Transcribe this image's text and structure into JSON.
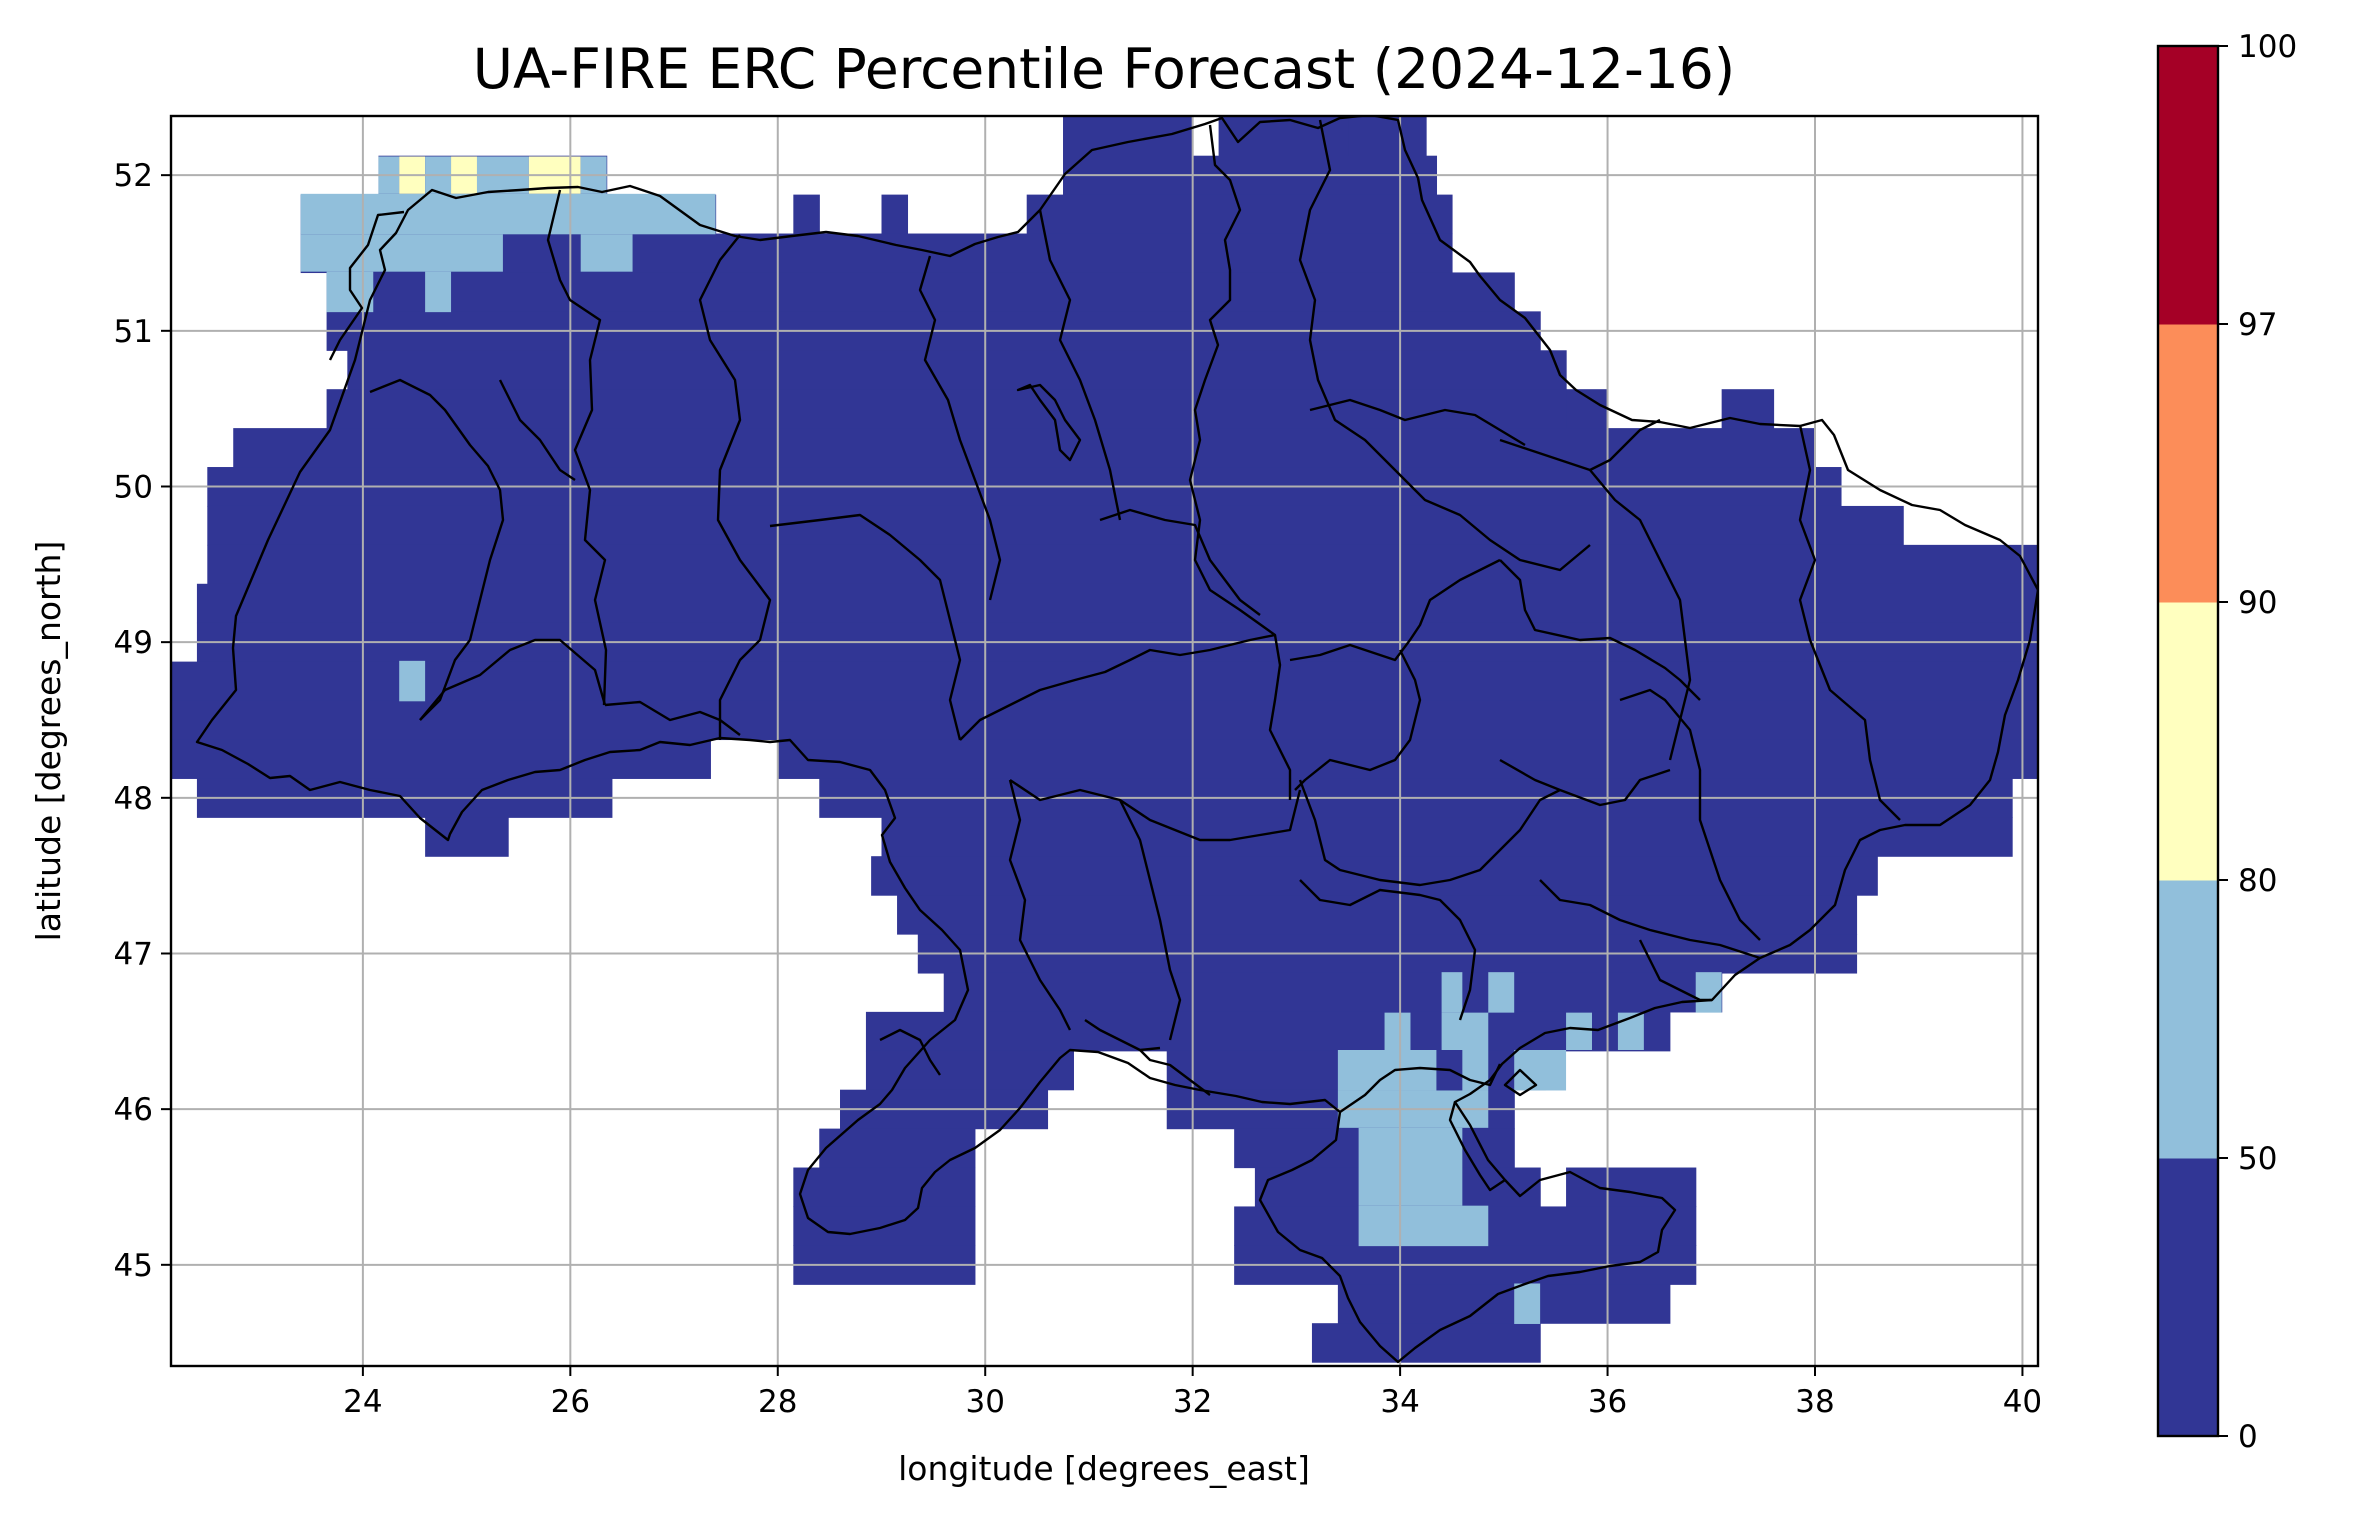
{
  "title": "UA-FIRE ERC Percentile Forecast (2024-12-16)",
  "x_axis": {
    "label": "longitude [degrees_east]",
    "range": [
      22.15,
      40.15
    ],
    "ticks": [
      24,
      26,
      28,
      30,
      32,
      34,
      36,
      38,
      40
    ]
  },
  "y_axis": {
    "label": "latitude [degrees_north]",
    "range": [
      44.35,
      52.38
    ],
    "ticks": [
      45,
      46,
      47,
      48,
      49,
      50,
      51,
      52
    ]
  },
  "grid": true,
  "colorbar": {
    "placement": "right",
    "bins": [
      {
        "from": 0,
        "to": 50,
        "color": "#313695"
      },
      {
        "from": 50,
        "to": 80,
        "color": "#91bfdb"
      },
      {
        "from": 80,
        "to": 90,
        "color": "#ffffbf"
      },
      {
        "from": 90,
        "to": 97,
        "color": "#fc8d59"
      },
      {
        "from": 97,
        "to": 100,
        "color": "#a50026"
      }
    ],
    "ticks": [
      0,
      50,
      80,
      90,
      97,
      100
    ]
  },
  "chart_data": {
    "type": "heatmap",
    "cell_size_deg": 0.25,
    "default_class": "0-50",
    "coverage_rows": [
      {
        "lat": 52.25,
        "spans": [
          [
            30.75,
            32.0
          ],
          [
            32.25,
            33.5
          ],
          [
            33.5,
            34.25
          ]
        ]
      },
      {
        "lat": 52.0,
        "spans": [
          [
            24.15,
            26.35
          ],
          [
            30.75,
            34.35
          ]
        ]
      },
      {
        "lat": 51.75,
        "spans": [
          [
            23.4,
            27.4
          ],
          [
            28.15,
            28.4
          ],
          [
            29.0,
            29.25
          ],
          [
            30.4,
            34.5
          ]
        ]
      },
      {
        "lat": 51.5,
        "spans": [
          [
            23.4,
            34.5
          ]
        ]
      },
      {
        "lat": 51.25,
        "spans": [
          [
            23.65,
            35.1
          ]
        ]
      },
      {
        "lat": 51.0,
        "spans": [
          [
            23.65,
            35.35
          ]
        ]
      },
      {
        "lat": 50.75,
        "spans": [
          [
            23.85,
            35.6
          ]
        ]
      },
      {
        "lat": 50.5,
        "spans": [
          [
            23.65,
            35.6
          ],
          [
            35.6,
            36.0
          ],
          [
            37.1,
            37.6
          ]
        ]
      },
      {
        "lat": 50.25,
        "spans": [
          [
            22.75,
            38.0
          ]
        ]
      },
      {
        "lat": 50.0,
        "spans": [
          [
            22.5,
            38.25
          ]
        ]
      },
      {
        "lat": 49.75,
        "spans": [
          [
            22.5,
            38.85
          ]
        ]
      },
      {
        "lat": 49.5,
        "spans": [
          [
            22.5,
            40.15
          ]
        ]
      },
      {
        "lat": 49.25,
        "spans": [
          [
            22.4,
            40.15
          ]
        ]
      },
      {
        "lat": 49.0,
        "spans": [
          [
            22.4,
            40.15
          ]
        ]
      },
      {
        "lat": 48.75,
        "spans": [
          [
            22.15,
            40.15
          ]
        ]
      },
      {
        "lat": 48.5,
        "spans": [
          [
            22.15,
            40.15
          ]
        ]
      },
      {
        "lat": 48.25,
        "spans": [
          [
            22.15,
            27.35
          ],
          [
            28.0,
            40.15
          ]
        ]
      },
      {
        "lat": 48.0,
        "spans": [
          [
            22.4,
            26.4
          ],
          [
            28.4,
            39.9
          ]
        ]
      },
      {
        "lat": 47.75,
        "spans": [
          [
            24.6,
            25.4
          ],
          [
            29.0,
            39.9
          ]
        ]
      },
      {
        "lat": 47.5,
        "spans": [
          [
            28.9,
            38.6
          ]
        ]
      },
      {
        "lat": 47.25,
        "spans": [
          [
            29.15,
            38.4
          ]
        ]
      },
      {
        "lat": 47.0,
        "spans": [
          [
            29.35,
            38.4
          ]
        ]
      },
      {
        "lat": 46.75,
        "spans": [
          [
            29.6,
            37.1
          ]
        ]
      },
      {
        "lat": 46.5,
        "spans": [
          [
            28.85,
            36.6
          ]
        ]
      },
      {
        "lat": 46.25,
        "spans": [
          [
            28.85,
            30.85
          ],
          [
            31.75,
            35.4
          ]
        ]
      },
      {
        "lat": 46.0,
        "spans": [
          [
            28.6,
            30.6
          ],
          [
            31.75,
            35.1
          ]
        ]
      },
      {
        "lat": 45.75,
        "spans": [
          [
            28.4,
            29.9
          ],
          [
            32.4,
            35.1
          ]
        ]
      },
      {
        "lat": 45.5,
        "spans": [
          [
            28.15,
            29.9
          ],
          [
            32.6,
            35.35
          ],
          [
            35.6,
            36.85
          ]
        ]
      },
      {
        "lat": 45.25,
        "spans": [
          [
            28.15,
            29.9
          ],
          [
            32.4,
            36.85
          ]
        ]
      },
      {
        "lat": 45.0,
        "spans": [
          [
            28.15,
            29.9
          ],
          [
            32.4,
            36.85
          ]
        ]
      },
      {
        "lat": 44.75,
        "spans": [
          [
            33.4,
            36.6
          ]
        ]
      },
      {
        "lat": 44.5,
        "spans": [
          [
            33.15,
            35.35
          ]
        ]
      }
    ],
    "class_patches": [
      {
        "class": "50-80",
        "lon": [
          24.15,
          24.35
        ],
        "lat": [
          51.88,
          52.12
        ]
      },
      {
        "class": "80-90",
        "lon": [
          24.35,
          24.6
        ],
        "lat": [
          51.88,
          52.12
        ]
      },
      {
        "class": "50-80",
        "lon": [
          24.6,
          24.85
        ],
        "lat": [
          51.88,
          52.12
        ]
      },
      {
        "class": "80-90",
        "lon": [
          24.85,
          25.1
        ],
        "lat": [
          51.88,
          52.12
        ]
      },
      {
        "class": "50-80",
        "lon": [
          25.1,
          25.6
        ],
        "lat": [
          51.88,
          52.12
        ]
      },
      {
        "class": "80-90",
        "lon": [
          25.6,
          26.1
        ],
        "lat": [
          51.88,
          52.12
        ]
      },
      {
        "class": "50-80",
        "lon": [
          26.1,
          26.35
        ],
        "lat": [
          51.88,
          52.12
        ]
      },
      {
        "class": "50-80",
        "lon": [
          23.4,
          27.4
        ],
        "lat": [
          51.62,
          51.88
        ]
      },
      {
        "class": "50-80",
        "lon": [
          23.4,
          25.35
        ],
        "lat": [
          51.38,
          51.62
        ]
      },
      {
        "class": "50-80",
        "lon": [
          26.1,
          26.6
        ],
        "lat": [
          51.38,
          51.62
        ]
      },
      {
        "class": "50-80",
        "lon": [
          23.65,
          24.1
        ],
        "lat": [
          51.12,
          51.38
        ]
      },
      {
        "class": "50-80",
        "lon": [
          24.6,
          24.85
        ],
        "lat": [
          51.12,
          51.38
        ]
      },
      {
        "class": "50-80",
        "lon": [
          24.35,
          24.6
        ],
        "lat": [
          48.62,
          48.88
        ]
      },
      {
        "class": "50-80",
        "lon": [
          34.4,
          34.6
        ],
        "lat": [
          46.62,
          46.88
        ]
      },
      {
        "class": "50-80",
        "lon": [
          34.85,
          35.1
        ],
        "lat": [
          46.62,
          46.88
        ]
      },
      {
        "class": "50-80",
        "lon": [
          33.85,
          34.1
        ],
        "lat": [
          46.38,
          46.62
        ]
      },
      {
        "class": "50-80",
        "lon": [
          34.4,
          34.85
        ],
        "lat": [
          46.38,
          46.62
        ]
      },
      {
        "class": "50-80",
        "lon": [
          35.6,
          35.85
        ],
        "lat": [
          46.38,
          46.62
        ]
      },
      {
        "class": "50-80",
        "lon": [
          36.1,
          36.35
        ],
        "lat": [
          46.38,
          46.62
        ]
      },
      {
        "class": "50-80",
        "lon": [
          36.85,
          37.1
        ],
        "lat": [
          46.62,
          46.88
        ]
      },
      {
        "class": "50-80",
        "lon": [
          33.4,
          34.35
        ],
        "lat": [
          46.12,
          46.38
        ]
      },
      {
        "class": "50-80",
        "lon": [
          34.6,
          34.85
        ],
        "lat": [
          46.12,
          46.38
        ]
      },
      {
        "class": "50-80",
        "lon": [
          35.1,
          35.6
        ],
        "lat": [
          46.12,
          46.38
        ]
      },
      {
        "class": "50-80",
        "lon": [
          33.4,
          34.85
        ],
        "lat": [
          45.88,
          46.12
        ]
      },
      {
        "class": "50-80",
        "lon": [
          33.6,
          34.6
        ],
        "lat": [
          45.38,
          45.88
        ]
      },
      {
        "class": "50-80",
        "lon": [
          33.6,
          34.85
        ],
        "lat": [
          45.12,
          45.38
        ]
      },
      {
        "class": "50-80",
        "lon": [
          35.1,
          35.35
        ],
        "lat": [
          44.62,
          44.88
        ]
      }
    ]
  }
}
